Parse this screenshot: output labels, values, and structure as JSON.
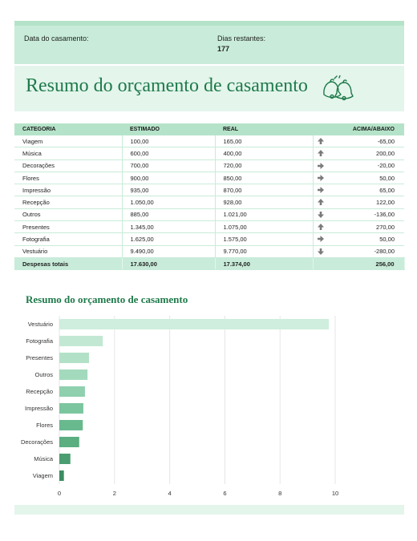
{
  "header": {
    "wedding_date_label": "Data do casamento:",
    "wedding_date_value": "",
    "days_left_label": "Dias restantes:",
    "days_left_value": "177"
  },
  "title": "Resumo do orçamento de casamento",
  "icon": "wedding-bells-icon",
  "table": {
    "columns": [
      "CATEGORIA",
      "ESTIMADO",
      "REAL",
      "ACIMA/ABAIXO"
    ],
    "rows": [
      {
        "category": "Viagem",
        "estimated": "100,00",
        "actual": "165,00",
        "trend": "up",
        "diff": "-65,00"
      },
      {
        "category": "Música",
        "estimated": "600,00",
        "actual": "400,00",
        "trend": "up",
        "diff": "200,00"
      },
      {
        "category": "Decorações",
        "estimated": "700,00",
        "actual": "720,00",
        "trend": "right",
        "diff": "-20,00"
      },
      {
        "category": "Flores",
        "estimated": "900,00",
        "actual": "850,00",
        "trend": "right",
        "diff": "50,00"
      },
      {
        "category": "Impressão",
        "estimated": "935,00",
        "actual": "870,00",
        "trend": "right",
        "diff": "65,00"
      },
      {
        "category": "Recepção",
        "estimated": "1.050,00",
        "actual": "928,00",
        "trend": "up",
        "diff": "122,00"
      },
      {
        "category": "Outros",
        "estimated": "885,00",
        "actual": "1.021,00",
        "trend": "down",
        "diff": "-136,00"
      },
      {
        "category": "Presentes",
        "estimated": "1.345,00",
        "actual": "1.075,00",
        "trend": "up",
        "diff": "270,00"
      },
      {
        "category": "Fotografia",
        "estimated": "1.625,00",
        "actual": "1.575,00",
        "trend": "right",
        "diff": "50,00"
      },
      {
        "category": "Vestuário",
        "estimated": "9.490,00",
        "actual": "9.770,00",
        "trend": "down",
        "diff": "-280,00"
      }
    ],
    "total": {
      "label": "Despesas totais",
      "estimated": "17.630,00",
      "actual": "17.374,00",
      "diff": "256,00"
    }
  },
  "colors": {
    "accent": "#1e7a4a",
    "band_light": "#e4f5ec",
    "band_mid": "#c8ecd9",
    "header_row": "#b5e3c9",
    "arrow": "#7a7a7a"
  },
  "chart_data": {
    "type": "bar",
    "orientation": "horizontal",
    "title": "Resumo do orçamento de casamento",
    "categories": [
      "Vestuário",
      "Fotografia",
      "Presentes",
      "Outros",
      "Recepção",
      "Impressão",
      "Flores",
      "Decorações",
      "Música",
      "Viagem"
    ],
    "values": [
      9.77,
      1.575,
      1.075,
      1.021,
      0.928,
      0.87,
      0.85,
      0.72,
      0.4,
      0.165
    ],
    "bar_colors": [
      "#cfeedd",
      "#c2e8d3",
      "#b3e1c8",
      "#a3dabd",
      "#8fd0ae",
      "#7cc69f",
      "#68b98e",
      "#5aae80",
      "#4a9d70",
      "#3b8d61"
    ],
    "xlim": [
      0,
      10
    ],
    "xticks": [
      "0",
      "2",
      "4",
      "6",
      "8",
      "10"
    ],
    "xlabel": "",
    "ylabel": "",
    "grid": true,
    "legend": "none"
  }
}
